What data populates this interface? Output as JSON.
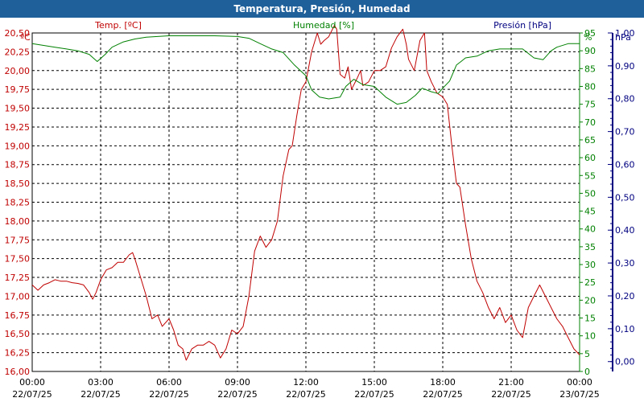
{
  "title": "Temperatura, Presión, Humedad",
  "colors": {
    "temp": "#c00000",
    "hum": "#008000",
    "pres": "#000080",
    "titlebar": "#1f5f9a"
  },
  "chart_data": {
    "type": "line",
    "title": "Temperatura, Presión, Humedad",
    "grid": true,
    "x_ticks": [
      {
        "time": "00:00",
        "date": "22/07/25"
      },
      {
        "time": "03:00",
        "date": "22/07/25"
      },
      {
        "time": "06:00",
        "date": "22/07/25"
      },
      {
        "time": "09:00",
        "date": "22/07/25"
      },
      {
        "time": "12:00",
        "date": "22/07/25"
      },
      {
        "time": "15:00",
        "date": "22/07/25"
      },
      {
        "time": "18:00",
        "date": "22/07/25"
      },
      {
        "time": "21:00",
        "date": "22/07/25"
      },
      {
        "time": "00:00",
        "date": "23/07/25"
      }
    ],
    "x_range_hours": [
      0,
      24
    ],
    "axes": {
      "temp": {
        "label": "Temp. [ºC]",
        "unit": "ºC",
        "ylim": [
          16.0,
          20.5
        ],
        "ticks": [
          "16,00",
          "16,25",
          "16,50",
          "16,75",
          "17,00",
          "17,25",
          "17,50",
          "17,75",
          "18,00",
          "18,25",
          "18,50",
          "18,75",
          "19,00",
          "19,25",
          "19,50",
          "19,75",
          "20,00",
          "20,25",
          "20,50"
        ]
      },
      "hum": {
        "label": "Humedad [%]",
        "unit": "%",
        "ylim": [
          0,
          95
        ],
        "ticks": [
          "0",
          "5",
          "10",
          "15",
          "20",
          "25",
          "30",
          "35",
          "40",
          "45",
          "50",
          "55",
          "60",
          "65",
          "70",
          "75",
          "80",
          "85",
          "90",
          "95"
        ]
      },
      "pres": {
        "label": "Presión [hPa]",
        "unit": "hPa",
        "ylim": [
          -0.03,
          1.0
        ],
        "ticks": [
          "0,00",
          "0,10",
          "0,20",
          "0,30",
          "0,40",
          "0,50",
          "0,60",
          "0,70",
          "0,80",
          "0,90",
          "1,00"
        ]
      }
    },
    "series": [
      {
        "key": "temp",
        "name": "Temp. [ºC]",
        "axis": "temp",
        "points": [
          [
            0,
            17.15
          ],
          [
            0.25,
            17.08
          ],
          [
            0.5,
            17.15
          ],
          [
            0.75,
            17.18
          ],
          [
            1,
            17.22
          ],
          [
            1.25,
            17.2
          ],
          [
            1.5,
            17.2
          ],
          [
            1.75,
            17.18
          ],
          [
            2,
            17.17
          ],
          [
            2.25,
            17.15
          ],
          [
            2.5,
            17.05
          ],
          [
            2.65,
            16.96
          ],
          [
            2.8,
            17.05
          ],
          [
            3,
            17.22
          ],
          [
            3.25,
            17.35
          ],
          [
            3.5,
            17.38
          ],
          [
            3.75,
            17.45
          ],
          [
            4,
            17.45
          ],
          [
            4.25,
            17.55
          ],
          [
            4.4,
            17.58
          ],
          [
            4.5,
            17.5
          ],
          [
            4.7,
            17.3
          ],
          [
            5,
            17.0
          ],
          [
            5.25,
            16.7
          ],
          [
            5.5,
            16.75
          ],
          [
            5.7,
            16.6
          ],
          [
            6,
            16.7
          ],
          [
            6.2,
            16.55
          ],
          [
            6.4,
            16.35
          ],
          [
            6.6,
            16.3
          ],
          [
            6.75,
            16.15
          ],
          [
            7,
            16.3
          ],
          [
            7.25,
            16.35
          ],
          [
            7.5,
            16.35
          ],
          [
            7.75,
            16.4
          ],
          [
            8,
            16.35
          ],
          [
            8.25,
            16.18
          ],
          [
            8.5,
            16.3
          ],
          [
            8.75,
            16.55
          ],
          [
            9,
            16.5
          ],
          [
            9.25,
            16.6
          ],
          [
            9.5,
            17.0
          ],
          [
            9.75,
            17.6
          ],
          [
            10,
            17.8
          ],
          [
            10.25,
            17.65
          ],
          [
            10.5,
            17.75
          ],
          [
            10.75,
            18.0
          ],
          [
            11,
            18.6
          ],
          [
            11.25,
            18.95
          ],
          [
            11.4,
            19.0
          ],
          [
            11.6,
            19.4
          ],
          [
            11.8,
            19.75
          ],
          [
            12,
            19.85
          ],
          [
            12.25,
            20.25
          ],
          [
            12.5,
            20.5
          ],
          [
            12.65,
            20.35
          ],
          [
            12.8,
            20.4
          ],
          [
            13,
            20.45
          ],
          [
            13.25,
            20.6
          ],
          [
            13.35,
            20.55
          ],
          [
            13.5,
            19.95
          ],
          [
            13.7,
            19.9
          ],
          [
            13.85,
            20.05
          ],
          [
            14,
            19.75
          ],
          [
            14.25,
            19.9
          ],
          [
            14.4,
            20.0
          ],
          [
            14.5,
            19.8
          ],
          [
            14.75,
            19.85
          ],
          [
            15,
            20.0
          ],
          [
            15.25,
            20.0
          ],
          [
            15.5,
            20.05
          ],
          [
            15.75,
            20.3
          ],
          [
            16,
            20.45
          ],
          [
            16.25,
            20.55
          ],
          [
            16.4,
            20.35
          ],
          [
            16.5,
            20.15
          ],
          [
            16.75,
            20.0
          ],
          [
            17,
            20.4
          ],
          [
            17.2,
            20.5
          ],
          [
            17.3,
            20.0
          ],
          [
            17.5,
            19.85
          ],
          [
            17.75,
            19.7
          ],
          [
            18,
            19.65
          ],
          [
            18.2,
            19.55
          ],
          [
            18.4,
            19.0
          ],
          [
            18.6,
            18.5
          ],
          [
            18.75,
            18.45
          ],
          [
            19,
            17.95
          ],
          [
            19.25,
            17.5
          ],
          [
            19.5,
            17.2
          ],
          [
            19.75,
            17.05
          ],
          [
            20,
            16.85
          ],
          [
            20.25,
            16.7
          ],
          [
            20.5,
            16.85
          ],
          [
            20.75,
            16.65
          ],
          [
            21,
            16.75
          ],
          [
            21.25,
            16.55
          ],
          [
            21.5,
            16.45
          ],
          [
            21.75,
            16.85
          ],
          [
            22,
            17.0
          ],
          [
            22.25,
            17.15
          ],
          [
            22.5,
            17.0
          ],
          [
            22.75,
            16.85
          ],
          [
            23,
            16.7
          ],
          [
            23.25,
            16.6
          ],
          [
            23.5,
            16.45
          ],
          [
            23.75,
            16.3
          ],
          [
            24,
            16.22
          ]
        ]
      },
      {
        "key": "hum",
        "name": "Humedad [%]",
        "axis": "hum",
        "points": [
          [
            0,
            92
          ],
          [
            0.5,
            91.5
          ],
          [
            1,
            91
          ],
          [
            1.5,
            90.5
          ],
          [
            2,
            90
          ],
          [
            2.5,
            89
          ],
          [
            2.85,
            87
          ],
          [
            3.2,
            89
          ],
          [
            3.5,
            91
          ],
          [
            4,
            92.5
          ],
          [
            4.5,
            93.3
          ],
          [
            5,
            93.8
          ],
          [
            5.5,
            94
          ],
          [
            6,
            94.2
          ],
          [
            7,
            94.2
          ],
          [
            8,
            94.2
          ],
          [
            9,
            94
          ],
          [
            9.5,
            93.5
          ],
          [
            10,
            92
          ],
          [
            10.5,
            90.5
          ],
          [
            11,
            89.5
          ],
          [
            11.5,
            86
          ],
          [
            12,
            83
          ],
          [
            12.25,
            79
          ],
          [
            12.6,
            77
          ],
          [
            13,
            76.5
          ],
          [
            13.5,
            77
          ],
          [
            13.75,
            80
          ],
          [
            14.1,
            82
          ],
          [
            14.5,
            80.5
          ],
          [
            15,
            80
          ],
          [
            15.5,
            77
          ],
          [
            16,
            75
          ],
          [
            16.4,
            75.5
          ],
          [
            16.8,
            77.5
          ],
          [
            17.1,
            79.5
          ],
          [
            17.5,
            78.5
          ],
          [
            17.8,
            78
          ],
          [
            18,
            79.5
          ],
          [
            18.3,
            81.5
          ],
          [
            18.6,
            86
          ],
          [
            18.8,
            87
          ],
          [
            19,
            88
          ],
          [
            19.5,
            88.5
          ],
          [
            20,
            90
          ],
          [
            20.5,
            90.5
          ],
          [
            21,
            90.5
          ],
          [
            21.5,
            90.5
          ],
          [
            22,
            88
          ],
          [
            22.4,
            87.5
          ],
          [
            22.75,
            90
          ],
          [
            23,
            91
          ],
          [
            23.5,
            92
          ],
          [
            24,
            92
          ]
        ]
      }
    ]
  }
}
